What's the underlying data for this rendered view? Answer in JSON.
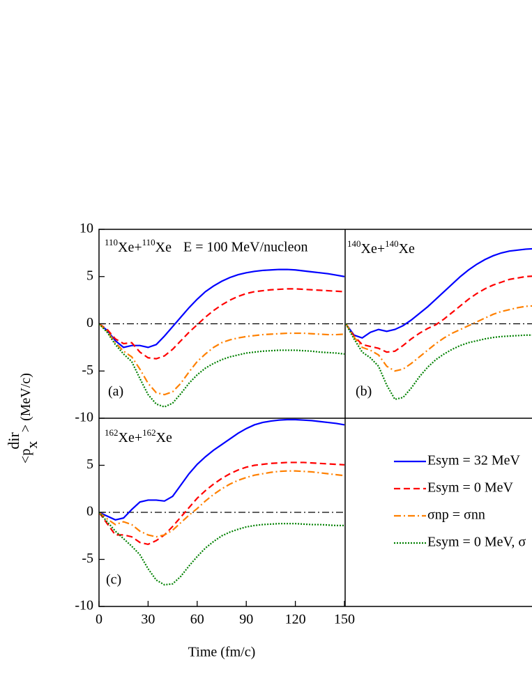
{
  "chart_data": [
    {
      "type": "line",
      "ylabel": {
        "pre": "<p",
        "sub": "x",
        "sup": "dir",
        "post": "> (MeV/c)"
      },
      "system": [
        "110",
        "Xe+",
        "110",
        "Xe"
      ],
      "annotation": "E = 100 MeV/nucleon",
      "panel": "(a)",
      "x": [
        0,
        5,
        10,
        15,
        20,
        25,
        30,
        35,
        40,
        45,
        50,
        55,
        60,
        65,
        70,
        75,
        80,
        85,
        90,
        95,
        100,
        105,
        110,
        115,
        120,
        125,
        130,
        135,
        140,
        145,
        150
      ],
      "xlim": [
        0,
        150
      ],
      "ylim": [
        -10,
        10
      ],
      "yticks": [
        -10,
        -5,
        0,
        5,
        10
      ],
      "series": [
        {
          "color": "#0000ff",
          "dash": "solid",
          "values": [
            0,
            -0.7,
            -1.8,
            -2.5,
            -2.3,
            -2.3,
            -2.5,
            -2.2,
            -1.3,
            -0.3,
            0.7,
            1.7,
            2.6,
            3.4,
            4.0,
            4.5,
            4.9,
            5.2,
            5.4,
            5.55,
            5.65,
            5.7,
            5.75,
            5.75,
            5.7,
            5.6,
            5.5,
            5.4,
            5.3,
            5.15,
            5.0
          ]
        },
        {
          "color": "#ff0000",
          "dash": "dashed",
          "values": [
            0,
            -0.6,
            -1.6,
            -2.1,
            -2.0,
            -3.0,
            -3.6,
            -3.7,
            -3.4,
            -2.7,
            -1.8,
            -0.9,
            -0.1,
            0.7,
            1.4,
            2.0,
            2.5,
            2.9,
            3.2,
            3.4,
            3.5,
            3.6,
            3.65,
            3.7,
            3.7,
            3.65,
            3.6,
            3.55,
            3.5,
            3.45,
            3.4
          ]
        },
        {
          "color": "#ff8000",
          "dash": "dashdot",
          "values": [
            0,
            -0.8,
            -2.0,
            -2.9,
            -3.5,
            -4.8,
            -6.3,
            -7.3,
            -7.5,
            -7.2,
            -6.3,
            -5.1,
            -4.0,
            -3.2,
            -2.5,
            -2.0,
            -1.7,
            -1.5,
            -1.35,
            -1.25,
            -1.15,
            -1.1,
            -1.05,
            -1.0,
            -1.0,
            -1.0,
            -1.05,
            -1.1,
            -1.15,
            -1.15,
            -1.1
          ]
        },
        {
          "color": "#008000",
          "dash": "dotted",
          "values": [
            0,
            -0.9,
            -2.2,
            -3.2,
            -4.0,
            -5.8,
            -7.5,
            -8.5,
            -8.8,
            -8.4,
            -7.4,
            -6.3,
            -5.4,
            -4.7,
            -4.2,
            -3.8,
            -3.5,
            -3.3,
            -3.1,
            -3.0,
            -2.9,
            -2.85,
            -2.8,
            -2.8,
            -2.8,
            -2.85,
            -2.9,
            -3.0,
            -3.05,
            -3.1,
            -3.2
          ]
        }
      ]
    },
    {
      "type": "line",
      "system": [
        "140",
        "Xe+",
        "140",
        "Xe"
      ],
      "panel": "(b)",
      "x": [
        0,
        5,
        10,
        15,
        20,
        25,
        30,
        35,
        40,
        45,
        50,
        55,
        60,
        65,
        70,
        75,
        80,
        85,
        90,
        95,
        100,
        105,
        110,
        115
      ],
      "xlim": [
        0,
        150
      ],
      "ylim": [
        -10,
        10
      ],
      "series": [
        {
          "color": "#0000ff",
          "dash": "solid",
          "values": [
            0,
            -1.2,
            -1.5,
            -0.9,
            -0.6,
            -0.8,
            -0.6,
            -0.2,
            0.4,
            1.1,
            1.8,
            2.6,
            3.4,
            4.2,
            5.0,
            5.7,
            6.3,
            6.8,
            7.2,
            7.5,
            7.7,
            7.8,
            7.9,
            7.95
          ]
        },
        {
          "color": "#ff0000",
          "dash": "dashed",
          "values": [
            0,
            -1.3,
            -2.2,
            -2.4,
            -2.6,
            -3.0,
            -2.9,
            -2.3,
            -1.6,
            -1.0,
            -0.5,
            -0.1,
            0.5,
            1.2,
            1.9,
            2.6,
            3.2,
            3.7,
            4.1,
            4.4,
            4.7,
            4.85,
            5.0,
            5.05
          ]
        },
        {
          "color": "#ff8000",
          "dash": "dashdot",
          "values": [
            0,
            -1.4,
            -2.5,
            -2.8,
            -3.3,
            -4.5,
            -5.0,
            -4.8,
            -4.2,
            -3.5,
            -2.8,
            -2.1,
            -1.5,
            -1.0,
            -0.6,
            -0.2,
            0.2,
            0.6,
            1.0,
            1.3,
            1.5,
            1.7,
            1.85,
            1.9
          ]
        },
        {
          "color": "#008000",
          "dash": "dotted",
          "values": [
            0,
            -1.6,
            -3.0,
            -3.6,
            -4.5,
            -6.5,
            -8.0,
            -7.8,
            -6.8,
            -5.6,
            -4.6,
            -3.8,
            -3.2,
            -2.7,
            -2.3,
            -2.0,
            -1.8,
            -1.6,
            -1.45,
            -1.35,
            -1.3,
            -1.25,
            -1.2,
            -1.2
          ]
        }
      ]
    },
    {
      "type": "line",
      "xlabel": "Time (fm/c)",
      "system": [
        "162",
        "Xe+",
        "162",
        "Xe"
      ],
      "panel": "(c)",
      "x": [
        0,
        5,
        10,
        15,
        20,
        25,
        30,
        35,
        40,
        45,
        50,
        55,
        60,
        65,
        70,
        75,
        80,
        85,
        90,
        95,
        100,
        105,
        110,
        115,
        120,
        125,
        130,
        135,
        140,
        145,
        150
      ],
      "xlim": [
        0,
        150
      ],
      "ylim": [
        -10,
        10
      ],
      "xticks": [
        0,
        30,
        60,
        90,
        120,
        150
      ],
      "yticks": [
        -10,
        -5,
        0,
        5
      ],
      "series": [
        {
          "name": "Esym = 32 MeV",
          "color": "#0000ff",
          "dash": "solid",
          "values": [
            0,
            -0.4,
            -0.8,
            -0.6,
            0.3,
            1.1,
            1.3,
            1.3,
            1.2,
            1.7,
            2.9,
            4.1,
            5.1,
            5.9,
            6.6,
            7.2,
            7.8,
            8.4,
            8.9,
            9.3,
            9.55,
            9.7,
            9.8,
            9.85,
            9.85,
            9.8,
            9.75,
            9.65,
            9.55,
            9.45,
            9.3
          ]
        },
        {
          "name": "Esym = 0 MeV",
          "color": "#ff0000",
          "dash": "dashed",
          "values": [
            0,
            -1.2,
            -2.4,
            -2.4,
            -2.6,
            -3.2,
            -3.4,
            -3.0,
            -2.4,
            -1.5,
            -0.5,
            0.5,
            1.5,
            2.3,
            3.0,
            3.6,
            4.1,
            4.5,
            4.8,
            5.0,
            5.1,
            5.2,
            5.25,
            5.3,
            5.3,
            5.3,
            5.25,
            5.2,
            5.15,
            5.1,
            5.05
          ]
        },
        {
          "name": "σnp = σnn",
          "color": "#ff8000",
          "dash": "dashdot",
          "values": [
            0,
            -0.7,
            -1.3,
            -1.0,
            -1.3,
            -2.0,
            -2.4,
            -2.6,
            -2.4,
            -1.9,
            -1.1,
            -0.3,
            0.4,
            1.2,
            1.9,
            2.5,
            3.0,
            3.4,
            3.7,
            3.95,
            4.1,
            4.25,
            4.35,
            4.4,
            4.4,
            4.35,
            4.3,
            4.2,
            4.1,
            4.0,
            3.9
          ]
        },
        {
          "name": "Esym = 0 MeV, σ",
          "color": "#008000",
          "dash": "dotted",
          "values": [
            0,
            -1.0,
            -2.0,
            -2.8,
            -3.6,
            -4.5,
            -6.0,
            -7.2,
            -7.7,
            -7.6,
            -6.8,
            -5.7,
            -4.7,
            -3.8,
            -3.1,
            -2.5,
            -2.1,
            -1.8,
            -1.55,
            -1.4,
            -1.3,
            -1.25,
            -1.2,
            -1.2,
            -1.2,
            -1.25,
            -1.3,
            -1.3,
            -1.35,
            -1.4,
            -1.4
          ]
        }
      ]
    }
  ]
}
